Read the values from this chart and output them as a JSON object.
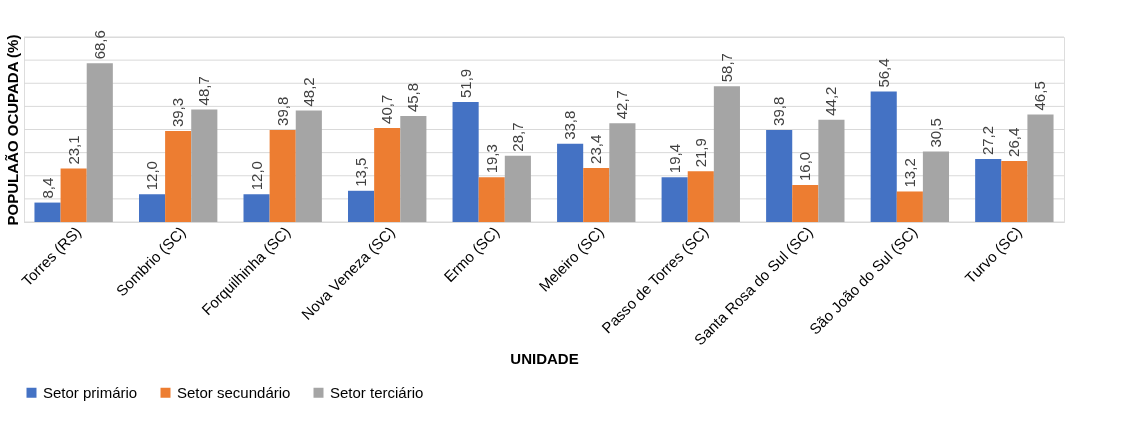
{
  "chart_data": {
    "type": "bar",
    "xlabel": "UNIDADE",
    "ylabel": "POPULAÃO OCUPADA (%)",
    "categories": [
      "Torres (RS)",
      "Sombrio (SC)",
      "Forquilhinha (SC)",
      "Nova Veneza (SC)",
      "Ermo (SC)",
      "Meleiro (SC)",
      "Passo de Torres (SC)",
      "Santa Rosa do Sul (SC)",
      "São João do Sul (SC)",
      "Turvo (SC)"
    ],
    "series": [
      {
        "name": "Setor primário",
        "color": "#4472c4",
        "values": [
          8.4,
          12.0,
          12.0,
          13.5,
          51.9,
          33.8,
          19.4,
          39.8,
          56.4,
          27.2
        ],
        "value_labels": [
          "8,4",
          "12,0",
          "12,0",
          "13,5",
          "51,9",
          "33,8",
          "19,4",
          "39,8",
          "56,4",
          "27,2"
        ]
      },
      {
        "name": "Setor secundário",
        "color": "#ed7d31",
        "values": [
          23.1,
          39.3,
          39.8,
          40.7,
          19.3,
          23.4,
          21.9,
          16.0,
          13.2,
          26.4
        ],
        "value_labels": [
          "23,1",
          "39,3",
          "39,8",
          "40,7",
          "19,3",
          "23,4",
          "21,9",
          "16,0",
          "13,2",
          "26,4"
        ]
      },
      {
        "name": "Setor terciário",
        "color": "#a5a5a5",
        "values": [
          68.6,
          48.7,
          48.2,
          45.8,
          28.7,
          42.7,
          58.7,
          44.2,
          30.5,
          46.5
        ],
        "value_labels": [
          "68,6",
          "48,7",
          "48,2",
          "45,8",
          "28,7",
          "42,7",
          "58,7",
          "44,2",
          "30,5",
          "46,5"
        ]
      }
    ],
    "ylim": [
      0,
      80
    ],
    "yticks": [
      {
        "value": 0,
        "label": null
      },
      {
        "value": 10,
        "label": null
      },
      {
        "value": 20,
        "label": null
      },
      {
        "value": 30,
        "label": null
      },
      {
        "value": 40,
        "label": null
      },
      {
        "value": 50,
        "label": null
      },
      {
        "value": 60,
        "label": null
      },
      {
        "value": 70,
        "label": null
      },
      {
        "value": 80,
        "label": null
      }
    ],
    "grid": "y",
    "legend": "bottom",
    "tick_labels": "x"
  }
}
